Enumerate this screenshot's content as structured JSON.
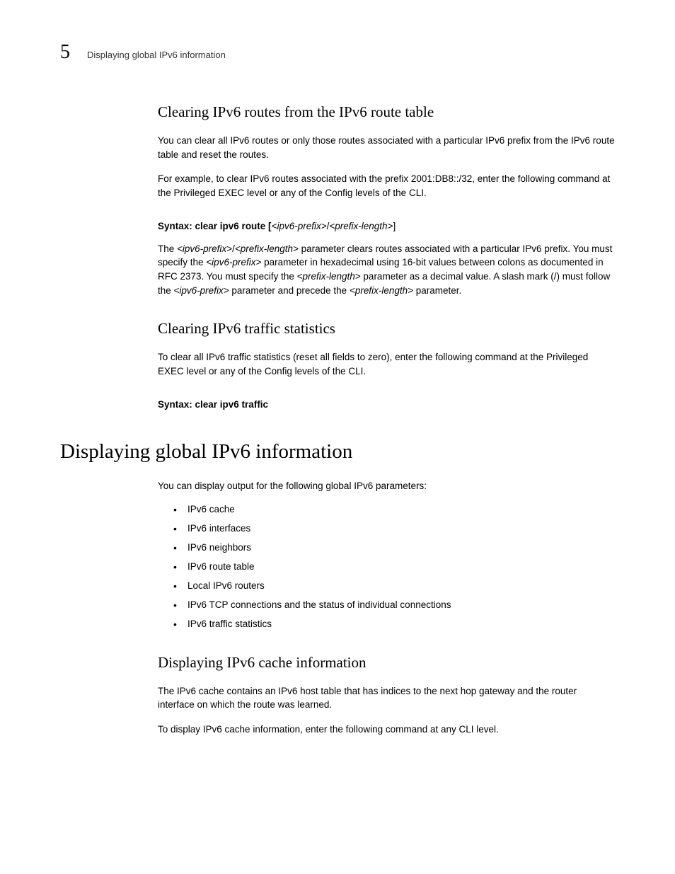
{
  "header": {
    "chapter_number": "5",
    "running_title": "Displaying global IPv6 information"
  },
  "section1": {
    "heading": "Clearing IPv6 routes from the IPv6 route table",
    "para1": "You can clear all IPv6 routes or only those routes associated with a particular IPv6 prefix from the IPv6 route table and reset the routes.",
    "para2": "For example, to clear IPv6 routes associated with the prefix 2001:DB8::/32, enter the following command at the Privileged EXEC level or any of the Config levels of the CLI.",
    "syntax_prefix": "Syntax:  clear ipv6 route [",
    "syntax_arg1": "<ipv6-prefix>",
    "syntax_sep": "/",
    "syntax_arg2": "<prefix-length>",
    "syntax_suffix": "]",
    "para3a": "The ",
    "para3_arg1": "<ipv6-prefix>",
    "para3b": "/",
    "para3_arg2": "<prefix-length>",
    "para3c": " parameter clears routes associated with a particular IPv6 prefix. You must specify the ",
    "para3_arg3": "<ipv6-prefix>",
    "para3d": " parameter in hexadecimal using 16-bit values between colons as documented in RFC 2373. You must specify the ",
    "para3_arg4": "<prefix-length>",
    "para3e": " parameter as a decimal value. A slash mark (/) must follow the ",
    "para3_arg5": "<ipv6-prefix>",
    "para3f": " parameter and precede the ",
    "para3_arg6": "<prefix-length>",
    "para3g": " parameter."
  },
  "section2": {
    "heading": "Clearing IPv6 traffic statistics",
    "para1": "To clear all IPv6 traffic statistics (reset all fields to zero), enter the following command at the Privileged EXEC level or any of the Config levels of the CLI.",
    "syntax": "Syntax:  clear ipv6 traffic"
  },
  "section3": {
    "heading": "Displaying global IPv6 information",
    "para1": "You can display output for the following global IPv6 parameters:",
    "bullets": [
      "IPv6 cache",
      "IPv6 interfaces",
      "IPv6 neighbors",
      "IPv6 route table",
      "Local IPv6 routers",
      "IPv6 TCP connections and the status of individual connections",
      "IPv6 traffic statistics"
    ]
  },
  "section4": {
    "heading": "Displaying IPv6 cache information",
    "para1": "The IPv6 cache contains an IPv6 host table that has indices to the next hop gateway and the router interface on which the route was learned.",
    "para2": "To display IPv6 cache information, enter the following command at any CLI level."
  }
}
